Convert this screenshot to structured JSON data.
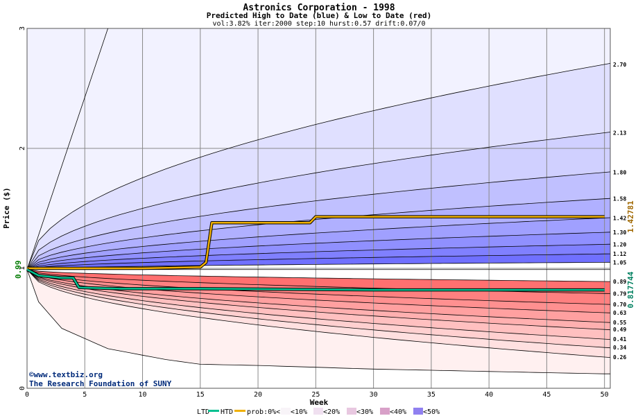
{
  "chart_data": {
    "type": "area",
    "title": "Astronics Corporation - 1998",
    "subtitle": "Predicted High to Date (blue) &  Low to Date (red)",
    "params": "vol:3.82% iter:2000 step:10 hurst:0.57 drift:0.07/0",
    "xlabel": "Week",
    "ylabel": "Price ($)",
    "xlim": [
      0,
      50.5
    ],
    "ylim": [
      0,
      3
    ],
    "x_ticks": [
      0,
      5,
      10,
      15,
      20,
      25,
      30,
      35,
      40,
      45,
      50
    ],
    "y_ticks": [
      0,
      1,
      2,
      3
    ],
    "start_value": 0.99,
    "start_label": "0.99",
    "high_quantiles": [
      {
        "label": "1.05",
        "end": 1.05
      },
      {
        "label": "1.12",
        "end": 1.12
      },
      {
        "label": "1.20",
        "end": 1.2
      },
      {
        "label": "1.30",
        "end": 1.3
      },
      {
        "label": "1.42",
        "end": 1.42
      },
      {
        "label": "1.58",
        "end": 1.58
      },
      {
        "label": "1.80",
        "end": 1.8
      },
      {
        "label": "2.13",
        "end": 2.13
      },
      {
        "label": "2.70",
        "end": 2.7
      }
    ],
    "low_quantiles": [
      {
        "label": "0.89",
        "end": 0.89
      },
      {
        "label": "0.79",
        "end": 0.79
      },
      {
        "label": "0.70",
        "end": 0.7
      },
      {
        "label": "0.63",
        "end": 0.63
      },
      {
        "label": "0.55",
        "end": 0.55
      },
      {
        "label": "0.49",
        "end": 0.49
      },
      {
        "label": "0.41",
        "end": 0.41
      },
      {
        "label": "0.34",
        "end": 0.34
      },
      {
        "label": "0.26",
        "end": 0.26
      }
    ],
    "outer_high_line": {
      "x": [
        0,
        7
      ],
      "y": [
        0.99,
        3.0
      ]
    },
    "outer_low_line": {
      "x": [
        0,
        1,
        3,
        7,
        12,
        15,
        20,
        30,
        40,
        50
      ],
      "y": [
        0.99,
        0.72,
        0.5,
        0.33,
        0.24,
        0.2,
        0.19,
        0.16,
        0.14,
        0.12
      ]
    },
    "htd_series": {
      "name": "HTD",
      "x": [
        0,
        3,
        10,
        15,
        15.5,
        16,
        24,
        24.5,
        25,
        50
      ],
      "y": [
        1.0,
        1.0,
        1.0,
        1.01,
        1.05,
        1.38,
        1.38,
        1.38,
        1.43,
        1.43
      ],
      "end_value": "1.42781",
      "color": "#f0b000"
    },
    "ltd_series": {
      "name": "LTD",
      "x": [
        0,
        1,
        2,
        3,
        4,
        4.5,
        8,
        15,
        30,
        50
      ],
      "y": [
        0.99,
        0.94,
        0.93,
        0.92,
        0.92,
        0.84,
        0.83,
        0.83,
        0.82,
        0.82
      ],
      "end_value": "0.817744",
      "color": "#00c090"
    },
    "credit_lines": [
      "©www.textbiz.org",
      "The Research Foundation of SUNY"
    ],
    "legend": [
      "LTD",
      "HTD",
      "prob:0%<",
      "<10%",
      "<20%",
      "<30%",
      "<40%",
      "<50%"
    ],
    "colors": {
      "high_bands": [
        "#f2f2ff",
        "#e0e0ff",
        "#d0d0ff",
        "#c0c0ff",
        "#b0b0ff",
        "#a0a0ff",
        "#9090ff",
        "#8080ff",
        "#7070ff"
      ],
      "low_bands": [
        "#fff0f0",
        "#ffe0e0",
        "#ffd0d0",
        "#ffc0c0",
        "#ffb0b0",
        "#ffa0a0",
        "#ff9090",
        "#ff8080",
        "#ff7070"
      ],
      "high_value_label": "#a06800",
      "low_value_label": "#008060",
      "grid": "#888888"
    }
  }
}
